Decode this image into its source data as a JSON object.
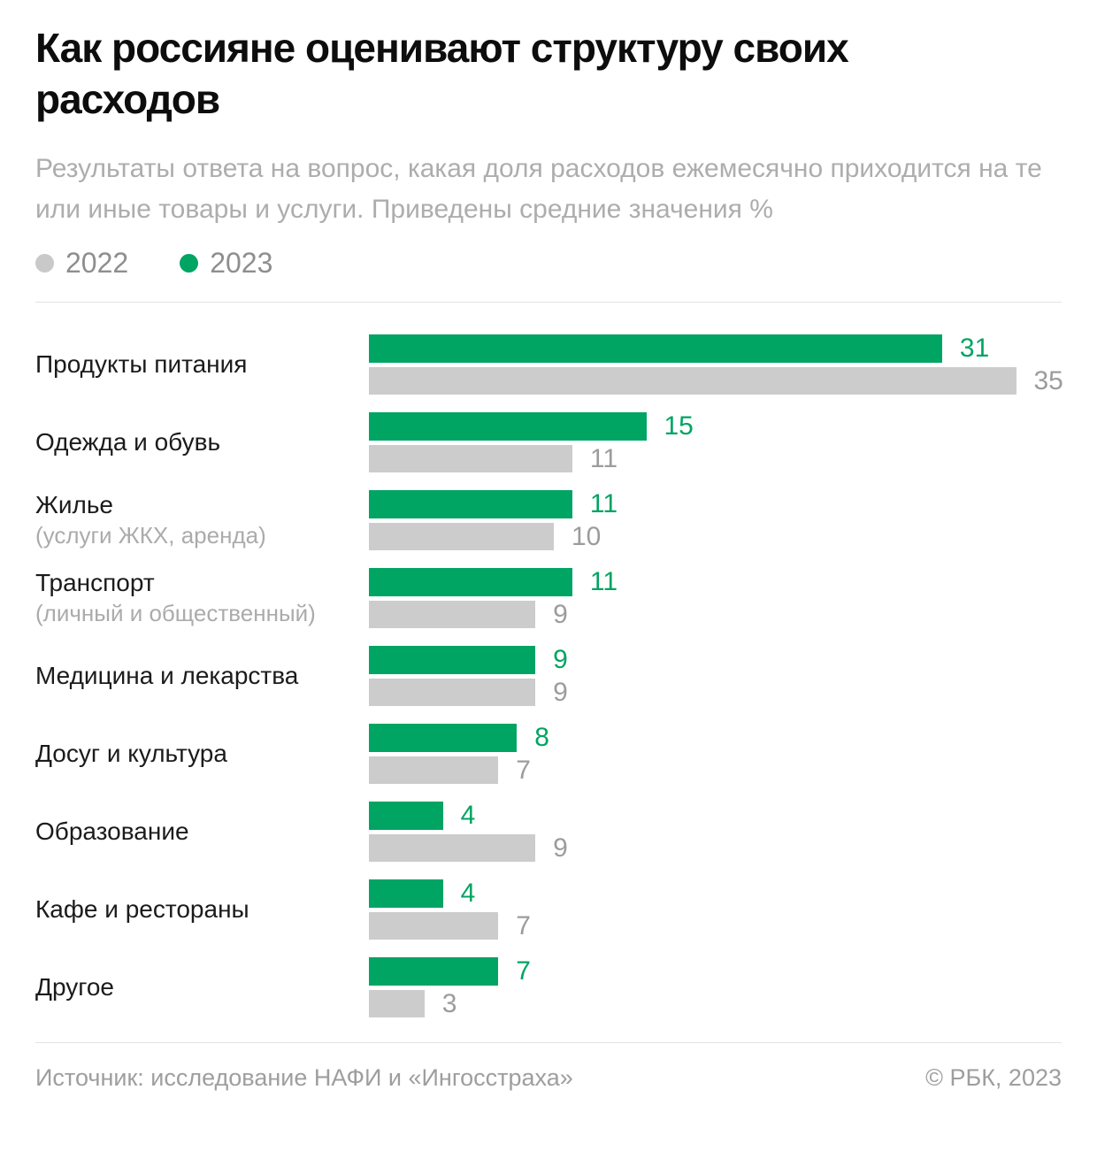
{
  "title": "Как россияне оценивают структуру своих расходов",
  "subtitle": "Результаты ответа на вопрос, какая доля расходов ежемесячно приходится на те или иные товары и услуги. Приведены средние значения %",
  "colors": {
    "green_2023": "#00a463",
    "gray_2022": "#cccccc",
    "gray_value_label": "#9c9c9c",
    "green_value_label": "#00a463",
    "legend_dot_gray": "#c9c9c9"
  },
  "legend": [
    {
      "label": "2022",
      "color": "#c9c9c9"
    },
    {
      "label": "2023",
      "color": "#00a463"
    }
  ],
  "chart_data": {
    "type": "bar",
    "orientation": "horizontal",
    "xlim": [
      0,
      35
    ],
    "grid": false,
    "legend_position": "top-left",
    "categories": [
      {
        "label": "Продукты питания",
        "sublabel": ""
      },
      {
        "label": "Одежда и обувь",
        "sublabel": ""
      },
      {
        "label": "Жилье",
        "sublabel": "(услуги ЖКХ, аренда)"
      },
      {
        "label": "Транспорт",
        "sublabel": "(личный и общественный)"
      },
      {
        "label": "Медицина и лекарства",
        "sublabel": ""
      },
      {
        "label": "Досуг и культура",
        "sublabel": ""
      },
      {
        "label": "Образование",
        "sublabel": ""
      },
      {
        "label": "Кафе и рестораны",
        "sublabel": ""
      },
      {
        "label": "Другое",
        "sublabel": ""
      }
    ],
    "series": [
      {
        "name": "2023",
        "color": "#00a463",
        "values": [
          31,
          15,
          11,
          11,
          9,
          8,
          4,
          4,
          7
        ]
      },
      {
        "name": "2022",
        "color": "#cccccc",
        "values": [
          35,
          11,
          10,
          9,
          9,
          7,
          9,
          7,
          3
        ]
      }
    ]
  },
  "footer": {
    "source": "Источник: исследование НАФИ и «Ингосстраха»",
    "copyright": "© РБК, 2023"
  }
}
